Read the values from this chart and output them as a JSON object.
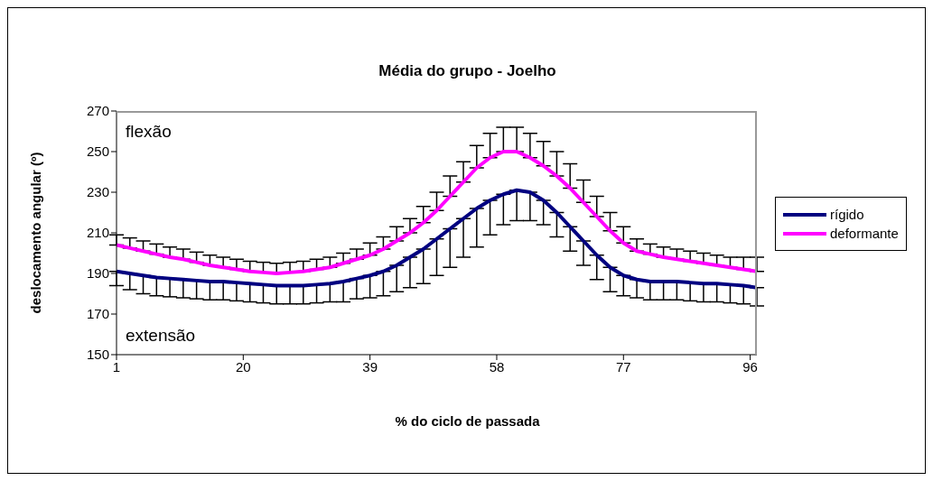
{
  "chart_data": {
    "type": "line",
    "title": "Média do grupo - Joelho",
    "xlabel": "% do ciclo de passada",
    "ylabel": "deslocamento angular (º)",
    "annotations": [
      "flexão",
      "extensão"
    ],
    "x": [
      1,
      3,
      5,
      7,
      9,
      11,
      13,
      15,
      17,
      19,
      21,
      23,
      25,
      27,
      29,
      31,
      33,
      35,
      37,
      39,
      41,
      43,
      45,
      47,
      49,
      51,
      53,
      55,
      57,
      59,
      61,
      63,
      65,
      67,
      69,
      71,
      73,
      75,
      77,
      79,
      81,
      83,
      85,
      87,
      89,
      91,
      93,
      95,
      97
    ],
    "xlim": [
      1,
      97
    ],
    "xticks": [
      1,
      20,
      39,
      58,
      77,
      96
    ],
    "ylim": [
      150,
      270
    ],
    "yticks": [
      150,
      170,
      190,
      210,
      230,
      250,
      270
    ],
    "grid": false,
    "legend": "right",
    "marker": "none",
    "line_style": "solid",
    "series": [
      {
        "name": "rígido",
        "color": "#000080",
        "values": [
          191,
          190,
          189,
          188,
          187.5,
          187,
          186.5,
          186,
          186,
          185.5,
          185,
          184.5,
          184,
          184,
          184,
          184.5,
          185,
          186,
          187.5,
          189,
          191,
          194,
          198,
          202,
          207,
          212,
          217,
          222,
          226,
          229,
          231,
          230,
          226,
          220,
          213,
          206,
          199,
          193,
          189,
          187,
          186,
          186,
          186,
          185.5,
          185,
          185,
          184.5,
          184,
          183
        ],
        "errors": [
          [
            184,
            191
          ],
          [
            182,
            190
          ],
          [
            180,
            189
          ],
          [
            179,
            188
          ],
          [
            178.5,
            187.5
          ],
          [
            178,
            187
          ],
          [
            177.5,
            186.5
          ],
          [
            177,
            186
          ],
          [
            177,
            186
          ],
          [
            176.5,
            185.5
          ],
          [
            176,
            185
          ],
          [
            175.5,
            184.5
          ],
          [
            175,
            184
          ],
          [
            175,
            184
          ],
          [
            175,
            184
          ],
          [
            175.5,
            184.5
          ],
          [
            176,
            185
          ],
          [
            176,
            186
          ],
          [
            177.5,
            187.5
          ],
          [
            178,
            189
          ],
          [
            179,
            191
          ],
          [
            181,
            194
          ],
          [
            183,
            198
          ],
          [
            185,
            202
          ],
          [
            189,
            207
          ],
          [
            193,
            212
          ],
          [
            198,
            217
          ],
          [
            203,
            222
          ],
          [
            209,
            226
          ],
          [
            214,
            229
          ],
          [
            216,
            231
          ],
          [
            216,
            230
          ],
          [
            214,
            226
          ],
          [
            208,
            220
          ],
          [
            201,
            213
          ],
          [
            194,
            206
          ],
          [
            187,
            199
          ],
          [
            181,
            193
          ],
          [
            179,
            189
          ],
          [
            178,
            187
          ],
          [
            177,
            186
          ],
          [
            177,
            186
          ],
          [
            177,
            186
          ],
          [
            176.5,
            185.5
          ],
          [
            176,
            185
          ],
          [
            176,
            185
          ],
          [
            175.5,
            184.5
          ],
          [
            175,
            184
          ],
          [
            174,
            183
          ]
        ]
      },
      {
        "name": "deformante",
        "color": "#ff00ff",
        "values": [
          204,
          202.5,
          201,
          199.5,
          198,
          197,
          195.5,
          194,
          193,
          192,
          191,
          190.5,
          190,
          190.5,
          191,
          192,
          193,
          195,
          197,
          199,
          202,
          206,
          210,
          215,
          221,
          228,
          235,
          242,
          247,
          250,
          250,
          247,
          243,
          238,
          232,
          225,
          218,
          211,
          205,
          201,
          199.5,
          198,
          197,
          196,
          195,
          194,
          193,
          192,
          191
        ],
        "errors": [
          [
            204,
            209
          ],
          [
            202.5,
            207.5
          ],
          [
            201,
            206
          ],
          [
            199.5,
            204.5
          ],
          [
            198,
            203
          ],
          [
            197,
            202
          ],
          [
            195.5,
            200.5
          ],
          [
            194,
            199
          ],
          [
            193,
            198
          ],
          [
            192,
            197
          ],
          [
            191,
            196
          ],
          [
            190.5,
            195.5
          ],
          [
            190,
            195
          ],
          [
            190.5,
            195.5
          ],
          [
            191,
            196
          ],
          [
            192,
            197
          ],
          [
            193,
            198
          ],
          [
            195,
            200
          ],
          [
            197,
            202
          ],
          [
            199,
            205
          ],
          [
            202,
            208
          ],
          [
            206,
            213
          ],
          [
            210,
            217
          ],
          [
            215,
            223
          ],
          [
            221,
            230
          ],
          [
            228,
            238
          ],
          [
            235,
            245
          ],
          [
            242,
            253
          ],
          [
            247,
            259
          ],
          [
            250,
            262
          ],
          [
            250,
            262
          ],
          [
            247,
            259
          ],
          [
            243,
            255
          ],
          [
            238,
            250
          ],
          [
            232,
            244
          ],
          [
            225,
            236
          ],
          [
            218,
            228
          ],
          [
            211,
            220
          ],
          [
            205,
            213
          ],
          [
            201,
            207
          ],
          [
            199.5,
            204.5
          ],
          [
            198,
            203
          ],
          [
            197,
            202
          ],
          [
            196,
            201
          ],
          [
            195,
            200
          ],
          [
            194,
            199
          ],
          [
            193,
            198
          ],
          [
            192,
            198
          ],
          [
            191,
            198
          ]
        ]
      }
    ]
  }
}
